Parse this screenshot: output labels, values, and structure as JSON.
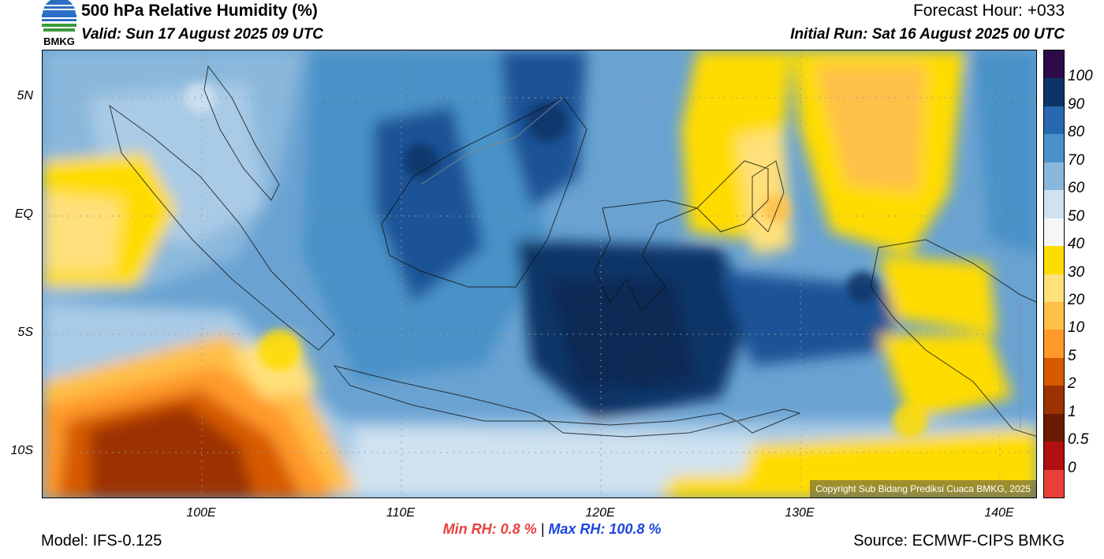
{
  "header": {
    "title": "500 hPa Relative Humidity (%)",
    "valid": "Valid: Sun 17 August 2025 09 UTC",
    "forecast_hour": "Forecast Hour: +033",
    "initial_run": "Initial Run: Sat 16 August 2025 00 UTC"
  },
  "logo": {
    "text": "BMKG",
    "icon": "bmkg-logo-icon"
  },
  "map": {
    "lat_labels": [
      "5N",
      "EQ",
      "5S",
      "10S"
    ],
    "lon_labels": [
      "100E",
      "110E",
      "120E",
      "130E",
      "140E"
    ],
    "lon_range": [
      92,
      142
    ],
    "lat_range": [
      -12,
      7
    ]
  },
  "colorbar": {
    "labels": [
      "100",
      "90",
      "80",
      "70",
      "60",
      "50",
      "40",
      "30",
      "20",
      "10",
      "5",
      "2",
      "1",
      "0.5",
      "0"
    ],
    "colors": [
      "#2d0a4a",
      "#0d3468",
      "#2768b0",
      "#4a92c8",
      "#8ab8dc",
      "#cfe2f0",
      "#f4f6f8",
      "#ffdc00",
      "#ffe07a",
      "#ffc04a",
      "#ff9a2a",
      "#d65a00",
      "#9c3200",
      "#6a1a00",
      "#b01010",
      "#e84038"
    ]
  },
  "stats": {
    "min_label": "Min RH:",
    "min_value": "0.8 %",
    "separator": "|",
    "max_label": "Max RH:",
    "max_value": "100.8 %"
  },
  "footer": {
    "model": "Model: IFS-0.125",
    "source": "Source: ECMWF-CIPS BMKG",
    "copyright": "Copyright Sub Bidang Prediksi Cuaca BMKG, 2025"
  }
}
